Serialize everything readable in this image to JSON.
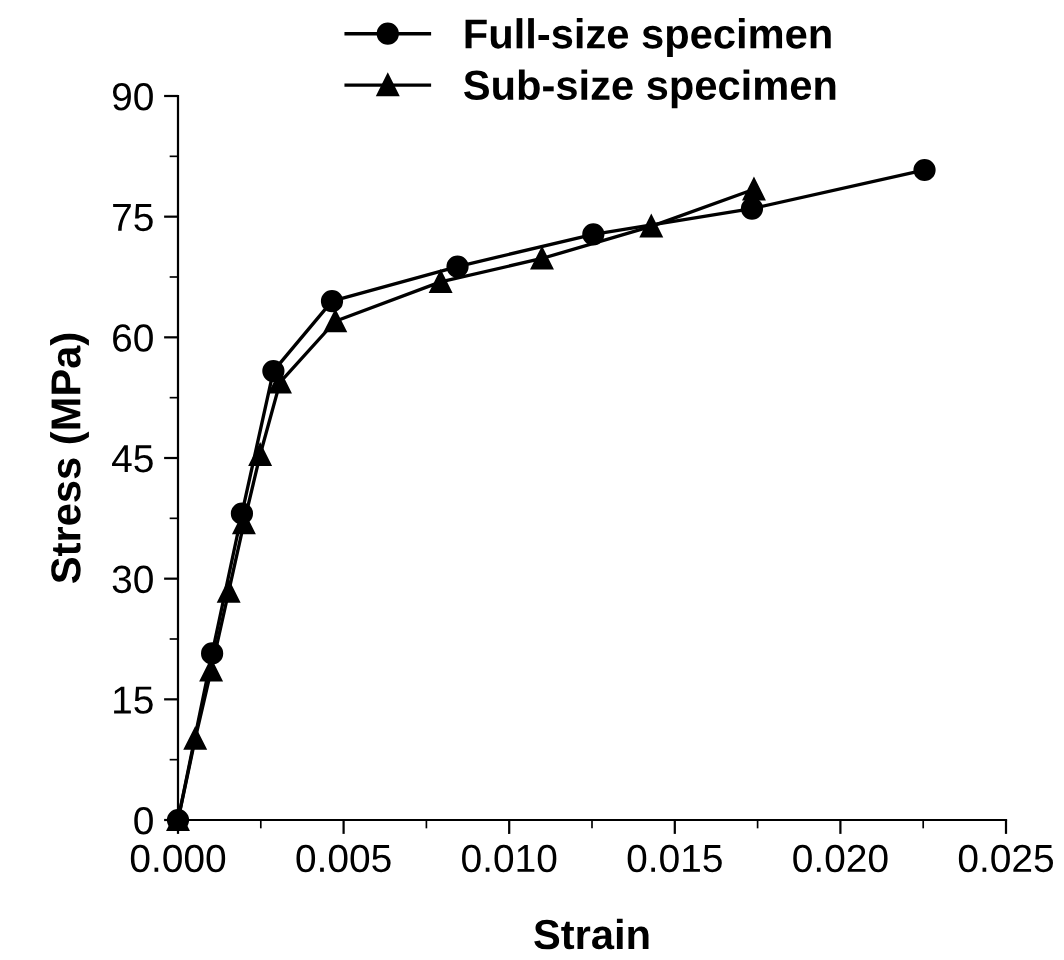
{
  "chart_data": {
    "type": "line",
    "xlabel": "Strain",
    "ylabel": "Stress (MPa)",
    "xlim": [
      0,
      0.025
    ],
    "xticks": [
      {
        "value": 0,
        "label": "0.000"
      },
      {
        "value": 0.005,
        "label": "0.005"
      },
      {
        "value": 0.01,
        "label": "0.010"
      },
      {
        "value": 0.015,
        "label": "0.015"
      },
      {
        "value": 0.02,
        "label": "0.020"
      },
      {
        "value": 0.025,
        "label": "0.025"
      }
    ],
    "ylim": [
      0,
      90
    ],
    "yticks": [
      0,
      15,
      30,
      45,
      60,
      75,
      90
    ],
    "grid": false,
    "legend": "top",
    "line_style": "solid",
    "series": [
      {
        "name": "Full-size specimen",
        "color": "#000000",
        "marker": "circle",
        "x": [
          0,
          0.00103,
          0.00193,
          0.00288,
          0.00465,
          0.00844,
          0.01254,
          0.01733,
          0.02254
        ],
        "values": [
          0,
          20.7,
          38.1,
          55.8,
          64.5,
          68.8,
          72.8,
          76.0,
          80.8
        ]
      },
      {
        "name": "Sub-size specimen",
        "color": "#000000",
        "marker": "triangle",
        "x": [
          0,
          0.00052,
          0.001,
          0.00153,
          0.00199,
          0.00248,
          0.00308,
          0.00475,
          0.00793,
          0.01099,
          0.01429,
          0.01739
        ],
        "values": [
          0,
          10.1,
          18.6,
          28.4,
          36.9,
          45.4,
          54.4,
          62.0,
          66.9,
          69.8,
          73.8,
          78.4
        ]
      }
    ]
  }
}
